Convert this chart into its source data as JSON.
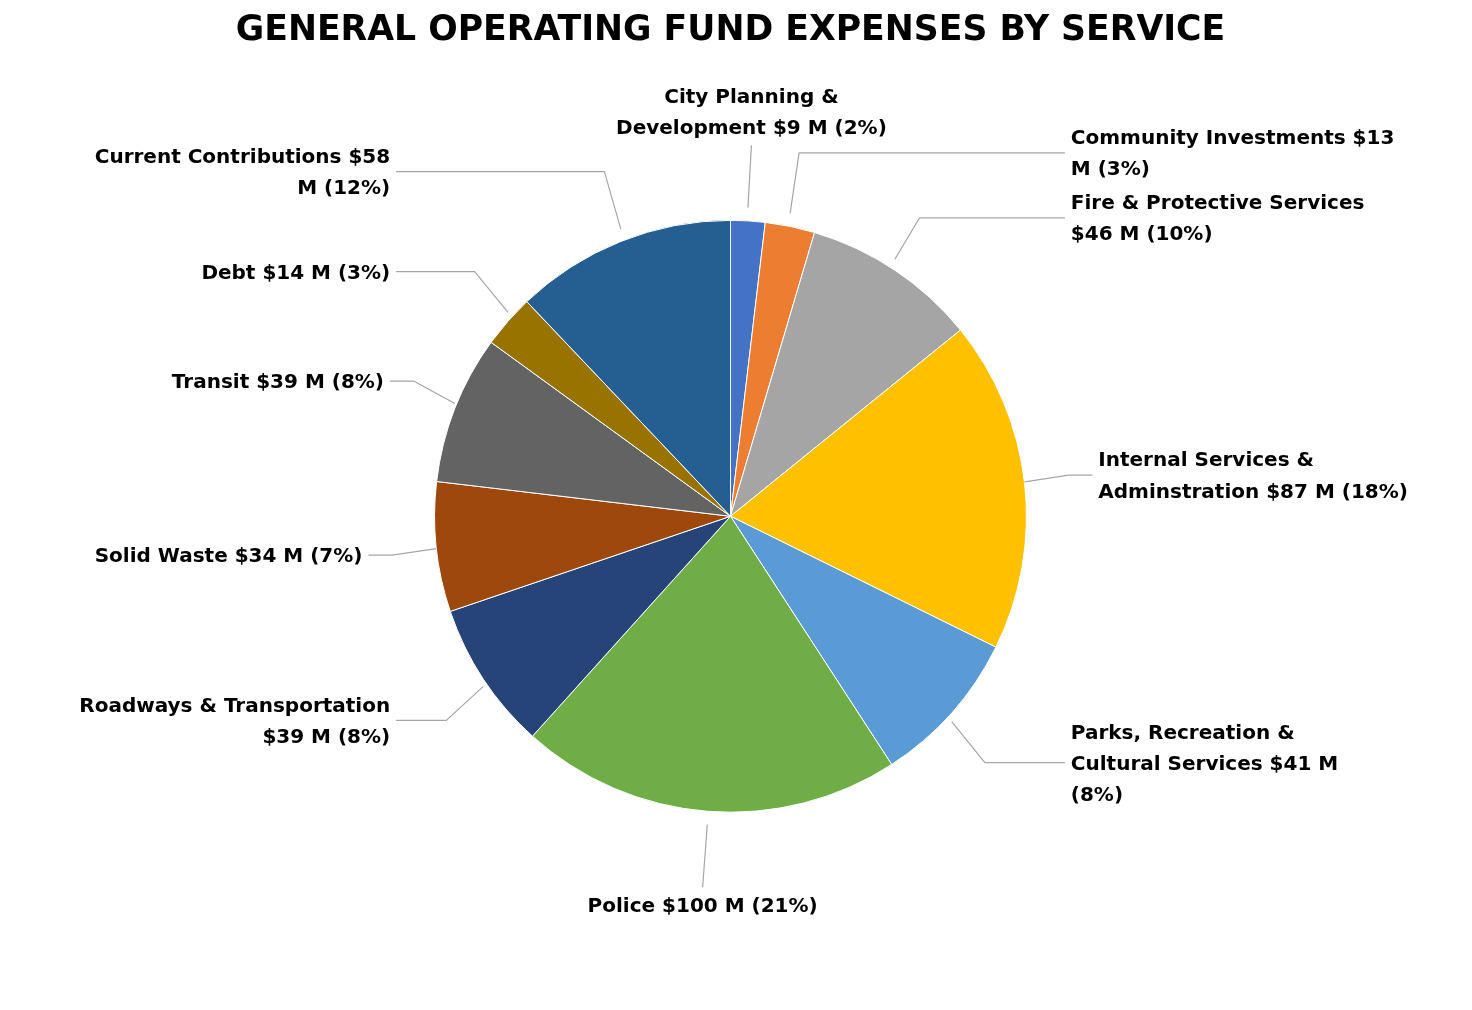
{
  "chart_data": {
    "type": "pie",
    "title": "GENERAL OPERATING FUND EXPENSES BY SERVICE",
    "categories": [
      "City Planning & Development",
      "Community Investments",
      "Fire & Protective Services",
      "Internal Services & Adminstration",
      "Parks, Recreation & Cultural Services",
      "Police",
      "Roadways & Transportation",
      "Solid Waste",
      "Transit",
      "Debt",
      "Current Contributions"
    ],
    "values": [
      9,
      13,
      46,
      87,
      41,
      100,
      39,
      34,
      39,
      14,
      58
    ],
    "value_labels": [
      "$9 M (2%)",
      "$13 M (3%)",
      "$46 M (10%)",
      "$87 M (18%)",
      "$41 M (8%)",
      "$100 M (21%)",
      "$39 M (8%)",
      "$34 M (7%)",
      "$39 M (8%)",
      "$14 M (3%)",
      "$58 M (12%)"
    ],
    "colors": [
      "#4472c4",
      "#ed7d31",
      "#a5a5a5",
      "#ffc000",
      "#5b9bd5",
      "#70ad47",
      "#264478",
      "#9e480e",
      "#636363",
      "#997300",
      "#255e91"
    ]
  }
}
